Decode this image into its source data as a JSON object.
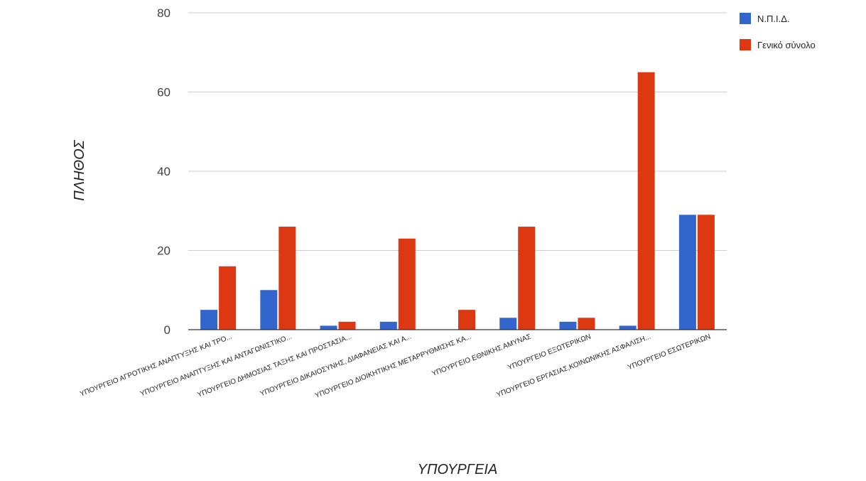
{
  "chart_data": {
    "type": "bar",
    "title": "",
    "xlabel": "ΥΠΟΥΡΓΕΙΑ",
    "ylabel": "ΠΛΗΘΟΣ",
    "ylim": [
      0,
      80
    ],
    "yticks": [
      0,
      20,
      40,
      60,
      80
    ],
    "grid": true,
    "legend_position": "top-right",
    "categories": [
      "ΥΠΟΥΡΓΕΙΟ ΑΓΡΟΤΙΚΗΣ ΑΝΑΠΤΥΞΗΣ ΚΑΙ ΤΡΟ...",
      "ΥΠΟΥΡΓΕΙΟ ΑΝΑΠΤΥΞΗΣ ΚΑΙ ΑΝΤΑΓΩΝΙΣΤΙΚΟ...",
      "ΥΠΟΥΡΓΕΙΟ ΔΗΜΟΣΙΑΣ ΤΑΞΗΣ ΚΑΙ ΠΡΟΣΤΑΣΙΑ...",
      "ΥΠΟΥΡΓΕΙΟ ΔΙΚΑΙΟΣΥΝΗΣ, ΔΙΑΦΑΝΕΙΑΣ ΚΑΙ Α...",
      "ΥΠΟΥΡΓΕΙΟ ΔΙΟΙΚΗΤΙΚΗΣ ΜΕΤΑΡΡΥΘΜΙΣΗΣ ΚΑ...",
      "ΥΠΟΥΡΓΕΙΟ ΕΘΝΙΚΗΣ ΑΜΥΝΑΣ",
      "ΥΠΟΥΡΓΕΙΟ ΕΞΩΤΕΡΙΚΩΝ",
      "ΥΠΟΥΡΓΕΙΟ ΕΡΓΑΣΙΑΣ,ΚΟΙΝΩΝΙΚΗΣ ΑΣΦΑΛΙΣΗ...",
      "ΥΠΟΥΡΓΕΙΟ ΕΣΩΤΕΡΙΚΩΝ"
    ],
    "series": [
      {
        "name": "Ν.Π.Ι.Δ.",
        "color": "#3366cc",
        "values": [
          5,
          10,
          1,
          2,
          0,
          3,
          2,
          1,
          29
        ]
      },
      {
        "name": "Γενικό σύνολο",
        "color": "#dc3912",
        "values": [
          16,
          26,
          2,
          23,
          5,
          26,
          3,
          65,
          29
        ]
      }
    ]
  }
}
